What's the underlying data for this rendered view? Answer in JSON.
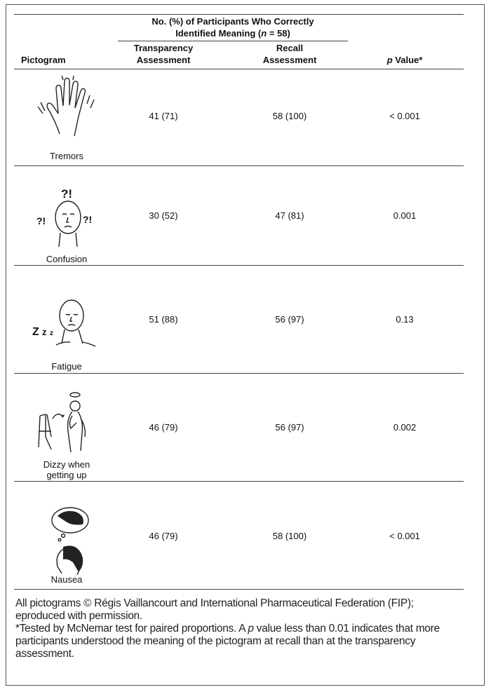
{
  "table": {
    "group_header": {
      "line1": "No. (%) of Participants Who Correctly",
      "line2_pre": "Identified Meaning (",
      "line2_n": "n",
      "line2_post": " = 58)"
    },
    "columns": {
      "pictogram": "Pictogram",
      "transparency": [
        "Transparency",
        "Assessment"
      ],
      "recall": [
        "Recall",
        "Assessment"
      ],
      "p_value_italic": "p",
      "p_value_rest": " Value*"
    },
    "rows": [
      {
        "label": [
          "Tremors"
        ],
        "icon": "tremoring-hand-icon",
        "transparency": "41 (71)",
        "recall": "58 (100)",
        "p": "< 0.001"
      },
      {
        "label": [
          "Confusion"
        ],
        "icon": "confused-face-icon",
        "transparency": "30 (52)",
        "recall": "47 (81)",
        "p": "0.001"
      },
      {
        "label": [
          "Fatigue"
        ],
        "icon": "tired-face-icon",
        "transparency": "51 (88)",
        "recall": "56 (97)",
        "p": "0.13"
      },
      {
        "label": [
          "Dizzy when",
          "getting up"
        ],
        "icon": "dizzy-person-chair-icon",
        "transparency": "46 (79)",
        "recall": "56 (97)",
        "p": "0.002"
      },
      {
        "label": [
          "Nausea"
        ],
        "icon": "nauseous-person-icon",
        "transparency": "46 (79)",
        "recall": "58 (100)",
        "p": "< 0.001"
      }
    ]
  },
  "footnotes": {
    "copyright": [
      "All pictograms © Régis Vaillancourt and International Pharmaceutical Federation (FIP);",
      "eproduced with permission."
    ],
    "test_pre": "*Tested by McNemar test for paired proportions. A ",
    "test_p": "p",
    "test_post": " value less than 0.01 indicates that more participants understood the meaning of the pictogram at recall than at the transparency assessment."
  }
}
